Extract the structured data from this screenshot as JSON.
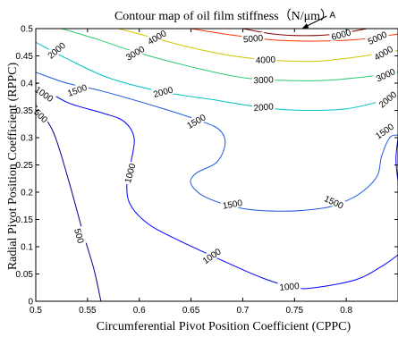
{
  "chart_data": {
    "type": "contour",
    "title": "Contour map of oil film stiffness（N/μm）",
    "xlabel": "Circumferential Pivot Position Coefficient (CPPC)",
    "ylabel": "Radial Pivot Position Coefficient (RPPC)",
    "xlim": [
      0.5,
      0.85
    ],
    "ylim": [
      0,
      0.5
    ],
    "xticks": [
      "0.5",
      "0.55",
      "0.6",
      "0.65",
      "0.7",
      "0.75",
      "0.8"
    ],
    "yticks": [
      "0",
      "0.05",
      "0.1",
      "0.15",
      "0.2",
      "0.25",
      "0.3",
      "0.35",
      "0.4",
      "0.45",
      "0.5"
    ],
    "annotation": {
      "text": "A",
      "x": 0.757,
      "y": 0.5
    },
    "levels": [
      {
        "value": 500,
        "color": "#00008b",
        "paths": [
          [
            [
              0.5,
              0.36
            ],
            [
              0.517,
              0.31
            ],
            [
              0.532,
              0.22
            ],
            [
              0.545,
              0.13
            ],
            [
              0.556,
              0.06
            ],
            [
              0.563,
              0.0
            ]
          ]
        ],
        "labels": [
          {
            "text": "500",
            "x": 0.505,
            "y": 0.34,
            "angle": 45
          },
          {
            "text": "500",
            "x": 0.542,
            "y": 0.12,
            "angle": 75
          }
        ]
      },
      {
        "value": 1000,
        "color": "#0000ff",
        "paths": [
          [
            [
              0.5,
              0.4
            ],
            [
              0.53,
              0.365
            ],
            [
              0.565,
              0.345
            ],
            [
              0.585,
              0.33
            ],
            [
              0.595,
              0.3
            ],
            [
              0.592,
              0.255
            ],
            [
              0.588,
              0.21
            ],
            [
              0.592,
              0.175
            ],
            [
              0.61,
              0.14
            ],
            [
              0.64,
              0.11
            ],
            [
              0.68,
              0.075
            ],
            [
              0.72,
              0.042
            ],
            [
              0.75,
              0.025
            ],
            [
              0.77,
              0.025
            ],
            [
              0.81,
              0.04
            ],
            [
              0.835,
              0.065
            ],
            [
              0.85,
              0.085
            ]
          ],
          [
            [
              0.85,
              0.22
            ],
            [
              0.848,
              0.26
            ],
            [
              0.85,
              0.3
            ]
          ]
        ],
        "labels": [
          {
            "text": "1000",
            "x": 0.508,
            "y": 0.38,
            "angle": 35
          },
          {
            "text": "1000",
            "x": 0.591,
            "y": 0.235,
            "angle": -75
          },
          {
            "text": "1000",
            "x": 0.67,
            "y": 0.083,
            "angle": -35
          },
          {
            "text": "1000",
            "x": 0.745,
            "y": 0.027,
            "angle": -5
          }
        ]
      },
      {
        "value": 1500,
        "color": "#1e5adc",
        "paths": [
          [
            [
              0.5,
              0.42
            ],
            [
              0.53,
              0.4
            ],
            [
              0.565,
              0.385
            ],
            [
              0.62,
              0.355
            ],
            [
              0.66,
              0.33
            ],
            [
              0.677,
              0.315
            ],
            [
              0.683,
              0.29
            ],
            [
              0.675,
              0.255
            ],
            [
              0.655,
              0.235
            ],
            [
              0.65,
              0.215
            ],
            [
              0.665,
              0.19
            ],
            [
              0.7,
              0.17
            ],
            [
              0.74,
              0.165
            ],
            [
              0.775,
              0.17
            ],
            [
              0.795,
              0.18
            ],
            [
              0.815,
              0.2
            ],
            [
              0.83,
              0.23
            ],
            [
              0.834,
              0.265
            ],
            [
              0.842,
              0.3
            ],
            [
              0.85,
              0.305
            ]
          ]
        ],
        "labels": [
          {
            "text": "1500",
            "x": 0.54,
            "y": 0.387,
            "angle": -20
          },
          {
            "text": "1500",
            "x": 0.655,
            "y": 0.33,
            "angle": -30
          },
          {
            "text": "1500",
            "x": 0.69,
            "y": 0.178,
            "angle": -10
          },
          {
            "text": "1500",
            "x": 0.788,
            "y": 0.182,
            "angle": 25
          },
          {
            "text": "1500",
            "x": 0.837,
            "y": 0.312,
            "angle": -35
          }
        ]
      },
      {
        "value": 2000,
        "color": "#00c0c0",
        "paths": [
          [
            [
              0.5,
              0.475
            ],
            [
              0.53,
              0.445
            ],
            [
              0.57,
              0.41
            ],
            [
              0.62,
              0.385
            ],
            [
              0.67,
              0.37
            ],
            [
              0.72,
              0.355
            ],
            [
              0.76,
              0.35
            ],
            [
              0.8,
              0.353
            ],
            [
              0.83,
              0.365
            ],
            [
              0.85,
              0.375
            ]
          ]
        ],
        "labels": [
          {
            "text": "2000",
            "x": 0.52,
            "y": 0.46,
            "angle": -40
          },
          {
            "text": "2000",
            "x": 0.623,
            "y": 0.384,
            "angle": -15
          },
          {
            "text": "2000",
            "x": 0.72,
            "y": 0.356,
            "angle": -5
          },
          {
            "text": "2000",
            "x": 0.84,
            "y": 0.37,
            "angle": -40
          }
        ]
      },
      {
        "value": 3000,
        "color": "#2ecc71",
        "paths": [
          [
            [
              0.525,
              0.5
            ],
            [
              0.56,
              0.48
            ],
            [
              0.6,
              0.455
            ],
            [
              0.65,
              0.43
            ],
            [
              0.7,
              0.41
            ],
            [
              0.74,
              0.405
            ],
            [
              0.78,
              0.405
            ],
            [
              0.82,
              0.412
            ],
            [
              0.85,
              0.42
            ]
          ]
        ],
        "labels": [
          {
            "text": "3000",
            "x": 0.596,
            "y": 0.455,
            "angle": -30
          },
          {
            "text": "3000",
            "x": 0.72,
            "y": 0.406,
            "angle": -3
          },
          {
            "text": "3000",
            "x": 0.838,
            "y": 0.415,
            "angle": -25
          }
        ]
      },
      {
        "value": 4000,
        "color": "#d4c400",
        "paths": [
          [
            [
              0.58,
              0.5
            ],
            [
              0.61,
              0.485
            ],
            [
              0.65,
              0.465
            ],
            [
              0.69,
              0.45
            ],
            [
              0.73,
              0.442
            ],
            [
              0.77,
              0.44
            ],
            [
              0.81,
              0.448
            ],
            [
              0.85,
              0.46
            ]
          ]
        ],
        "labels": [
          {
            "text": "4000",
            "x": 0.617,
            "y": 0.484,
            "angle": -30
          },
          {
            "text": "4000",
            "x": 0.722,
            "y": 0.443,
            "angle": -3
          },
          {
            "text": "4000",
            "x": 0.836,
            "y": 0.455,
            "angle": -30
          }
        ]
      },
      {
        "value": 5000,
        "color": "#ff3300",
        "paths": [
          [
            [
              0.65,
              0.5
            ],
            [
              0.69,
              0.488
            ],
            [
              0.73,
              0.479
            ],
            [
              0.77,
              0.477
            ],
            [
              0.81,
              0.48
            ],
            [
              0.85,
              0.49
            ]
          ]
        ],
        "labels": [
          {
            "text": "5000",
            "x": 0.71,
            "y": 0.482,
            "angle": -5
          },
          {
            "text": "5000",
            "x": 0.83,
            "y": 0.483,
            "angle": -25
          }
        ]
      },
      {
        "value": 6000,
        "color": "#8b0000",
        "paths": [
          [
            [
              0.7,
              0.5
            ],
            [
              0.73,
              0.49
            ],
            [
              0.76,
              0.487
            ],
            [
              0.79,
              0.49
            ],
            [
              0.82,
              0.5
            ]
          ]
        ],
        "labels": [
          {
            "text": "6000",
            "x": 0.795,
            "y": 0.489,
            "angle": -15
          }
        ]
      }
    ]
  }
}
